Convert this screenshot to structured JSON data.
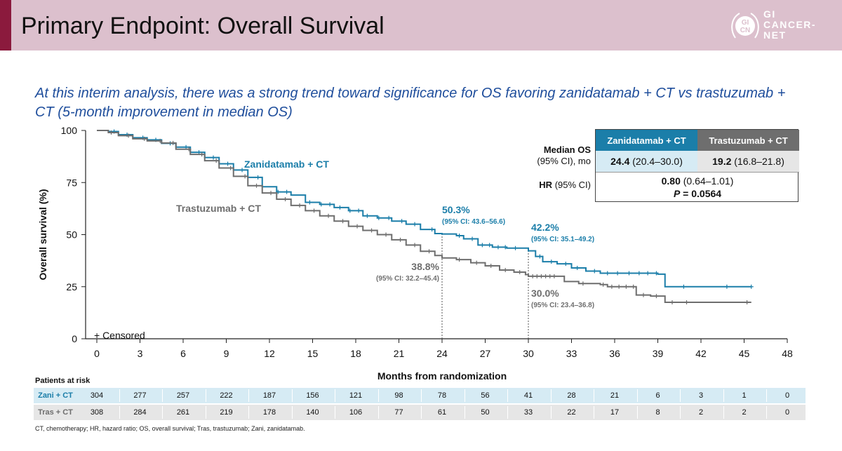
{
  "header": {
    "title": "Primary Endpoint: Overall Survival",
    "logo_lines": [
      "GI",
      "CANCER-",
      "NET"
    ],
    "logo_mark_letters": "GI CN",
    "accent_color": "#8b1a3d",
    "header_color": "#dcc0cd"
  },
  "subtitle": "At this interim analysis, there was a strong trend toward significance for OS favoring zanidatamab + CT vs trastuzumab + CT (5-month improvement in median OS)",
  "os_table": {
    "col_zani": "Zanidatamab + CT",
    "col_tras": "Trastuzumab + CT",
    "median_label_1": "Median OS",
    "median_label_2": "(95% CI), mo",
    "zani_median": "24.4",
    "zani_ci": "(20.4–30.0)",
    "tras_median": "19.2",
    "tras_ci": "(16.8–21.8)",
    "hr_label_bold": "HR",
    "hr_label_rest": "(95% CI)",
    "hr_value": "0.80",
    "hr_ci": "(0.64–1.01)",
    "p_label": "P",
    "p_value": "= 0.0564"
  },
  "chart_data": {
    "type": "line",
    "xlabel": "Months from randomization",
    "ylabel": "Overall survival (%)",
    "xlim": [
      0,
      48
    ],
    "ylim": [
      0,
      100
    ],
    "xticks": [
      0,
      3,
      6,
      9,
      12,
      15,
      18,
      21,
      24,
      27,
      30,
      33,
      36,
      39,
      42,
      45,
      48
    ],
    "yticks": [
      0,
      25,
      50,
      75,
      100
    ],
    "censored_legend": "+ Censored",
    "series": [
      {
        "name": "Zanidatamab + CT",
        "color": "#1b7ea9",
        "points": [
          [
            0,
            100
          ],
          [
            0.8,
            99.5
          ],
          [
            1.5,
            98
          ],
          [
            2.5,
            96.5
          ],
          [
            3.5,
            95.5
          ],
          [
            4.5,
            93.8
          ],
          [
            5.5,
            92
          ],
          [
            6.5,
            89.5
          ],
          [
            7.5,
            87
          ],
          [
            8.5,
            84
          ],
          [
            9.5,
            81
          ],
          [
            10.5,
            77.5
          ],
          [
            11.5,
            73
          ],
          [
            12.5,
            70.5
          ],
          [
            13.5,
            69
          ],
          [
            14.5,
            65.5
          ],
          [
            15.5,
            64.5
          ],
          [
            16.5,
            63
          ],
          [
            17.5,
            61.5
          ],
          [
            18.5,
            59
          ],
          [
            19.5,
            58
          ],
          [
            20.5,
            56.5
          ],
          [
            21.5,
            55
          ],
          [
            22.5,
            52.5
          ],
          [
            23.5,
            50.5
          ],
          [
            24,
            50.3
          ],
          [
            25,
            49.5
          ],
          [
            25.5,
            48
          ],
          [
            26.5,
            45
          ],
          [
            27.5,
            44
          ],
          [
            28.5,
            43.5
          ],
          [
            29.5,
            43.5
          ],
          [
            30,
            42.2
          ],
          [
            30.5,
            39.5
          ],
          [
            31,
            37
          ],
          [
            32,
            36
          ],
          [
            33,
            34
          ],
          [
            34,
            32.5
          ],
          [
            35,
            31.5
          ],
          [
            39,
            31
          ],
          [
            39.5,
            25
          ],
          [
            45.5,
            25
          ]
        ],
        "censor_x": [
          1.2,
          2.1,
          3.2,
          4.1,
          5.1,
          6.2,
          7.1,
          8.1,
          9.1,
          10.1,
          11.2,
          12.6,
          13.2,
          14.8,
          15.6,
          16.2,
          16.9,
          17.6,
          18.2,
          18.8,
          19.6,
          20.3,
          21.2,
          22.1,
          23.3,
          25.2,
          26.1,
          26.8,
          27.3,
          27.9,
          28.4,
          29.1,
          30.8,
          31.6,
          32.6,
          33.4,
          34.6,
          35.5,
          36.2,
          37.0,
          37.7,
          38.3,
          38.9,
          40.8,
          43.8,
          45.5
        ],
        "annotations": [
          {
            "x": 24,
            "y": 50.3,
            "label": "50.3%",
            "ci": "(95% CI: 43.6–56.6)"
          },
          {
            "x": 30,
            "y": 42.2,
            "label": "42.2%",
            "ci": "(95% CI: 35.1–49.2)"
          }
        ],
        "label": "Zanidatamab + CT"
      },
      {
        "name": "Trastuzumab + CT",
        "color": "#6e6e6e",
        "points": [
          [
            0,
            100
          ],
          [
            0.8,
            99
          ],
          [
            1.5,
            97.5
          ],
          [
            2.5,
            96
          ],
          [
            3.5,
            95
          ],
          [
            4.5,
            94
          ],
          [
            5.5,
            91
          ],
          [
            6.5,
            88.5
          ],
          [
            7.5,
            85.5
          ],
          [
            8.5,
            82
          ],
          [
            9.5,
            78
          ],
          [
            10.5,
            73.5
          ],
          [
            11.5,
            70
          ],
          [
            12.5,
            67
          ],
          [
            13.5,
            64
          ],
          [
            14.5,
            61.5
          ],
          [
            15.5,
            59
          ],
          [
            16.5,
            56.5
          ],
          [
            17.5,
            54
          ],
          [
            18.5,
            52
          ],
          [
            19.5,
            50
          ],
          [
            20.5,
            47.5
          ],
          [
            21.5,
            45
          ],
          [
            22.5,
            42
          ],
          [
            23.5,
            40
          ],
          [
            24,
            38.8
          ],
          [
            25,
            38
          ],
          [
            26,
            36.5
          ],
          [
            27,
            35
          ],
          [
            28,
            33
          ],
          [
            29,
            32
          ],
          [
            29.8,
            30.8
          ],
          [
            30,
            30
          ],
          [
            32,
            30
          ],
          [
            32.5,
            27.5
          ],
          [
            33.5,
            26.5
          ],
          [
            35,
            26
          ],
          [
            35.5,
            25
          ],
          [
            37,
            25
          ],
          [
            37.5,
            21
          ],
          [
            38.5,
            20.5
          ],
          [
            39.5,
            17.5
          ],
          [
            45.5,
            17.5
          ]
        ],
        "censor_x": [
          1.0,
          2.2,
          3.3,
          4.4,
          5.3,
          6.4,
          7.3,
          8.3,
          9.3,
          10.3,
          11.1,
          12.1,
          13.1,
          14.1,
          15.1,
          16.1,
          17.1,
          18.1,
          19.1,
          20.1,
          21.1,
          22.1,
          23.1,
          25.2,
          26.4,
          27.4,
          28.4,
          29.4,
          30.3,
          30.6,
          30.9,
          31.2,
          31.5,
          31.8,
          33.8,
          35.2,
          35.8,
          36.3,
          36.8,
          37.3,
          38.0,
          38.9,
          40.0,
          41.0,
          45.2
        ],
        "annotations": [
          {
            "x": 24,
            "y": 38.8,
            "label": "38.8%",
            "ci": "(95% CI: 32.2–45.4)"
          },
          {
            "x": 30,
            "y": 30.0,
            "label": "30.0%",
            "ci": "(95% CI: 23.4–36.8)"
          }
        ],
        "label": "Trastuzumab + CT"
      }
    ]
  },
  "risk_table": {
    "title": "Patients at risk",
    "rows": [
      {
        "label": "Zani + CT",
        "values": [
          "304",
          "277",
          "257",
          "222",
          "187",
          "156",
          "121",
          "98",
          "78",
          "56",
          "41",
          "28",
          "21",
          "6",
          "3",
          "1",
          "0"
        ]
      },
      {
        "label": "Tras + CT",
        "values": [
          "308",
          "284",
          "261",
          "219",
          "178",
          "140",
          "106",
          "77",
          "61",
          "50",
          "33",
          "22",
          "17",
          "8",
          "2",
          "2",
          "0"
        ]
      }
    ]
  },
  "footnote": "CT, chemotherapy; HR, hazard ratio; OS, overall survival; Tras, trastuzumab; Zani, zanidatamab."
}
